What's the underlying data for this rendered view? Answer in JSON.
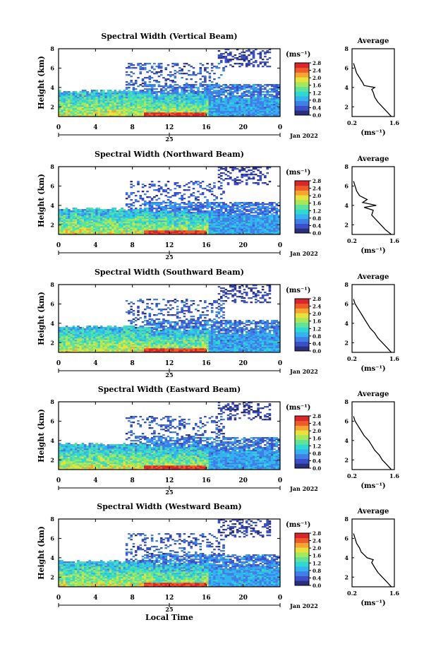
{
  "figure": {
    "xlabel": "Local Time",
    "ylabel": "Height (km)",
    "date_label": "Jan 2022",
    "day_label": "25",
    "colorbar_unit": "(ms⁻¹)",
    "avg_title": "Average",
    "avg_xlabel": "(ms⁻¹)",
    "colormap": [
      "#2a2f7a",
      "#3b4fc8",
      "#3f7fe6",
      "#33b3f0",
      "#2fd8d0",
      "#5fe39a",
      "#a6e85a",
      "#e8e23c",
      "#f6a531",
      "#ef5a2a",
      "#d8262a"
    ]
  },
  "chart_data": [
    {
      "type": "heatmap",
      "title": "Spectral Width (Vertical Beam)",
      "x_ticks": [
        "0",
        "4",
        "8",
        "12",
        "16",
        "20",
        "0"
      ],
      "y_ticks": [
        "2",
        "4",
        "6",
        "8"
      ],
      "xlim": [
        0,
        24
      ],
      "ylim": [
        1,
        8
      ],
      "colorbar_ticks": [
        "0.0",
        "0.4",
        "0.8",
        "1.2",
        "1.6",
        "2.0",
        "2.4",
        "2.8"
      ],
      "colorbar_range": [
        0,
        2.8
      ],
      "average_profile": {
        "x_ticks": [
          "0.2",
          "1.6"
        ],
        "y_ticks": [
          "2",
          "4",
          "6",
          "8"
        ],
        "xlim": [
          0.2,
          1.6
        ],
        "ylim": [
          1,
          8
        ],
        "heights": [
          1.0,
          1.5,
          2.0,
          2.5,
          3.0,
          3.5,
          3.8,
          4.0,
          4.2,
          4.5,
          5.0,
          5.5,
          6.0,
          6.5
        ],
        "values": [
          1.5,
          1.35,
          1.2,
          1.05,
          0.95,
          0.9,
          0.85,
          0.95,
          0.6,
          0.55,
          0.45,
          0.35,
          0.3,
          0.25
        ]
      }
    },
    {
      "type": "heatmap",
      "title": "Spectral Width (Northward Beam)",
      "x_ticks": [
        "0",
        "4",
        "8",
        "12",
        "16",
        "20",
        "0"
      ],
      "y_ticks": [
        "2",
        "4",
        "6",
        "8"
      ],
      "xlim": [
        0,
        24
      ],
      "ylim": [
        1,
        8
      ],
      "colorbar_ticks": [
        "0.0",
        "0.4",
        "0.8",
        "1.2",
        "1.6",
        "2.0",
        "2.4",
        "2.8"
      ],
      "colorbar_range": [
        0,
        2.8
      ],
      "average_profile": {
        "x_ticks": [
          "0.2",
          "1.6"
        ],
        "y_ticks": [
          "2",
          "4",
          "6",
          "8"
        ],
        "xlim": [
          0.2,
          1.6
        ],
        "ylim": [
          1,
          8
        ],
        "heights": [
          1.0,
          1.5,
          2.0,
          2.5,
          3.0,
          3.5,
          3.8,
          4.0,
          4.3,
          4.6,
          5.0,
          5.5,
          6.0,
          6.5
        ],
        "values": [
          1.5,
          1.3,
          1.15,
          1.0,
          0.85,
          0.9,
          0.6,
          1.0,
          0.55,
          0.7,
          0.45,
          0.35,
          0.3,
          0.25
        ]
      }
    },
    {
      "type": "heatmap",
      "title": "Spectral Width (Southward Beam)",
      "x_ticks": [
        "0",
        "4",
        "8",
        "12",
        "16",
        "20",
        "0"
      ],
      "y_ticks": [
        "2",
        "4",
        "6",
        "8"
      ],
      "xlim": [
        0,
        24
      ],
      "ylim": [
        1,
        8
      ],
      "colorbar_ticks": [
        "0.0",
        "0.4",
        "0.8",
        "1.2",
        "1.6",
        "2.0",
        "2.4",
        "2.8"
      ],
      "colorbar_range": [
        0,
        2.8
      ],
      "average_profile": {
        "x_ticks": [
          "0.2",
          "1.6"
        ],
        "y_ticks": [
          "2",
          "4",
          "6",
          "8"
        ],
        "xlim": [
          0.2,
          1.6
        ],
        "ylim": [
          1,
          8
        ],
        "heights": [
          1.0,
          1.5,
          2.0,
          2.5,
          3.0,
          3.5,
          4.0,
          4.5,
          5.0,
          5.5,
          6.0,
          6.5
        ],
        "values": [
          1.5,
          1.35,
          1.2,
          1.05,
          0.95,
          0.8,
          0.7,
          0.6,
          0.5,
          0.4,
          0.3,
          0.25
        ]
      }
    },
    {
      "type": "heatmap",
      "title": "Spectral Width (Eastward Beam)",
      "x_ticks": [
        "0",
        "4",
        "8",
        "12",
        "16",
        "20",
        "0"
      ],
      "y_ticks": [
        "2",
        "4",
        "6",
        "8"
      ],
      "xlim": [
        0,
        24
      ],
      "ylim": [
        1,
        8
      ],
      "colorbar_ticks": [
        "0.0",
        "0.4",
        "0.8",
        "1.2",
        "1.6",
        "2.0",
        "2.4",
        "2.8"
      ],
      "colorbar_range": [
        0,
        2.8
      ],
      "average_profile": {
        "x_ticks": [
          "0.2",
          "1.6"
        ],
        "y_ticks": [
          "2",
          "4",
          "6",
          "8"
        ],
        "xlim": [
          0.2,
          1.6
        ],
        "ylim": [
          1,
          8
        ],
        "heights": [
          1.0,
          1.5,
          2.0,
          2.5,
          3.0,
          3.5,
          4.0,
          4.5,
          5.0,
          5.5,
          6.0,
          6.5
        ],
        "values": [
          1.5,
          1.35,
          1.2,
          1.1,
          0.95,
          0.85,
          0.75,
          0.6,
          0.5,
          0.4,
          0.3,
          0.25
        ]
      }
    },
    {
      "type": "heatmap",
      "title": "Spectral Width (Westward Beam)",
      "x_ticks": [
        "0",
        "4",
        "8",
        "12",
        "16",
        "20",
        "0"
      ],
      "y_ticks": [
        "2",
        "4",
        "6",
        "8"
      ],
      "xlim": [
        0,
        24
      ],
      "ylim": [
        1,
        8
      ],
      "colorbar_ticks": [
        "0.0",
        "0.4",
        "0.8",
        "1.2",
        "1.6",
        "2.0",
        "2.4",
        "2.8"
      ],
      "colorbar_range": [
        0,
        2.8
      ],
      "average_profile": {
        "x_ticks": [
          "0.2",
          "1.6"
        ],
        "y_ticks": [
          "2",
          "4",
          "6",
          "8"
        ],
        "xlim": [
          0.2,
          1.6
        ],
        "ylim": [
          1,
          8
        ],
        "heights": [
          1.0,
          1.5,
          2.0,
          2.5,
          3.0,
          3.5,
          3.8,
          4.0,
          4.3,
          4.6,
          5.0,
          5.5,
          6.0,
          6.5
        ],
        "values": [
          1.5,
          1.35,
          1.2,
          1.05,
          0.95,
          0.85,
          0.9,
          0.7,
          0.6,
          0.5,
          0.45,
          0.35,
          0.3,
          0.25
        ]
      }
    }
  ]
}
